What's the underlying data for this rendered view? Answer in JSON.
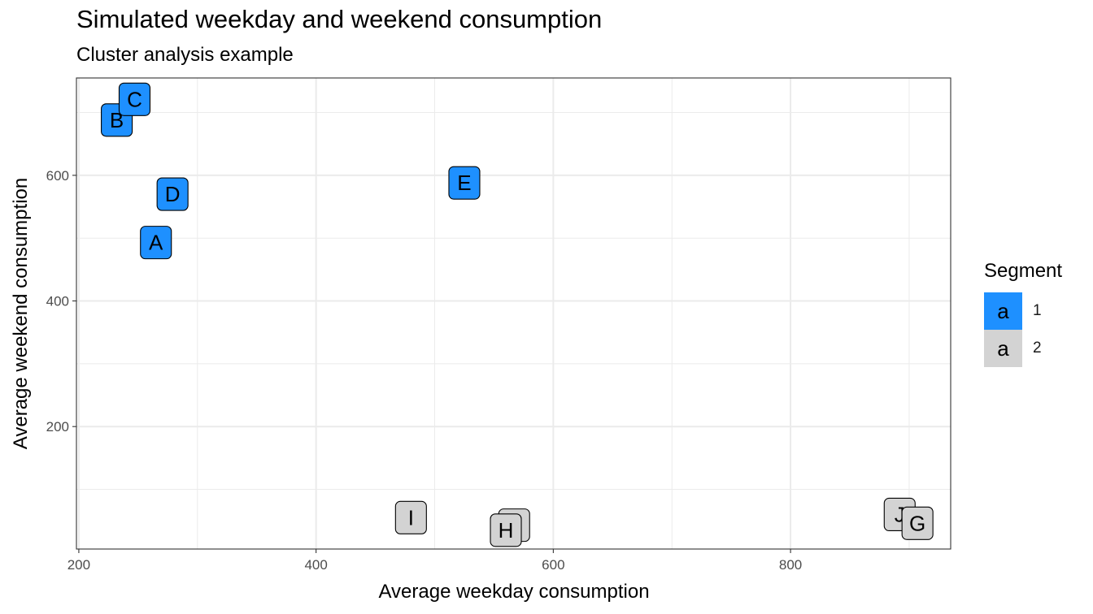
{
  "chart_data": {
    "type": "scatter",
    "title": "Simulated weekday and weekend consumption",
    "subtitle": "Cluster analysis example",
    "xlabel": "Average weekday consumption",
    "ylabel": "Average weekend consumption",
    "xlim": [
      198,
      935
    ],
    "ylim": [
      5,
      755
    ],
    "xticks": [
      200,
      400,
      600,
      800
    ],
    "yticks": [
      200,
      400,
      600
    ],
    "grid": true,
    "legend_title": "Segment",
    "legend_placement": "right",
    "legend_key_glyph": "a",
    "series": [
      {
        "name": "1",
        "color": "#1E90FF",
        "points": [
          {
            "label": "A",
            "x": 265,
            "y": 493
          },
          {
            "label": "B",
            "x": 232,
            "y": 688
          },
          {
            "label": "C",
            "x": 247,
            "y": 721
          },
          {
            "label": "D",
            "x": 279,
            "y": 570
          },
          {
            "label": "E",
            "x": 525,
            "y": 588
          }
        ]
      },
      {
        "name": "2",
        "color": "#D3D3D3",
        "points": [
          {
            "label": "I",
            "x": 480,
            "y": 55
          },
          {
            "label": "F",
            "x": 567,
            "y": 43
          },
          {
            "label": "H",
            "x": 560,
            "y": 35
          },
          {
            "label": "J",
            "x": 892,
            "y": 60
          },
          {
            "label": "G",
            "x": 907,
            "y": 46
          }
        ]
      }
    ]
  }
}
